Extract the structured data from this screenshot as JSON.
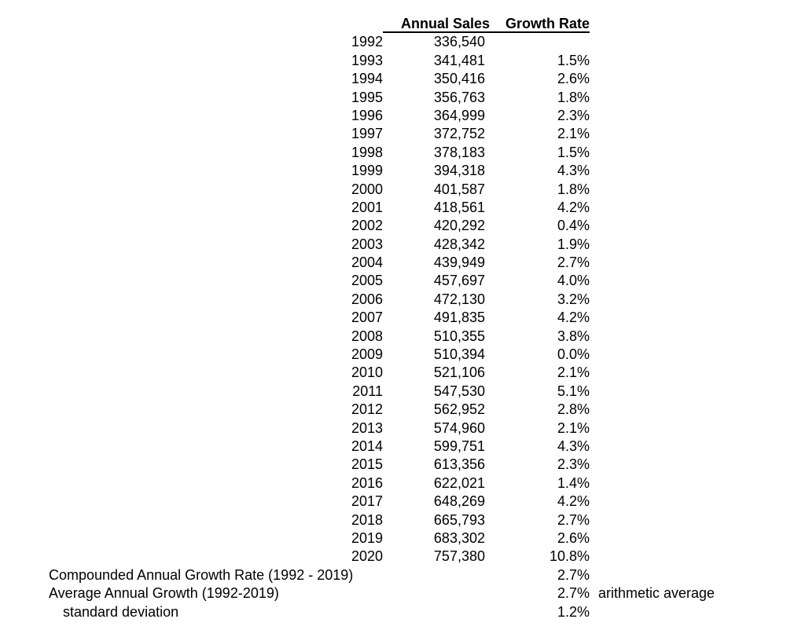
{
  "chart_data": {
    "type": "table",
    "title": "",
    "headers": {
      "label": "",
      "sales": "Annual Sales",
      "growth": "Growth Rate"
    },
    "rows": [
      {
        "year": "1992",
        "sales": "336,540",
        "growth": ""
      },
      {
        "year": "1993",
        "sales": "341,481",
        "growth": "1.5%"
      },
      {
        "year": "1994",
        "sales": "350,416",
        "growth": "2.6%"
      },
      {
        "year": "1995",
        "sales": "356,763",
        "growth": "1.8%"
      },
      {
        "year": "1996",
        "sales": "364,999",
        "growth": "2.3%"
      },
      {
        "year": "1997",
        "sales": "372,752",
        "growth": "2.1%"
      },
      {
        "year": "1998",
        "sales": "378,183",
        "growth": "1.5%"
      },
      {
        "year": "1999",
        "sales": "394,318",
        "growth": "4.3%"
      },
      {
        "year": "2000",
        "sales": "401,587",
        "growth": "1.8%"
      },
      {
        "year": "2001",
        "sales": "418,561",
        "growth": "4.2%"
      },
      {
        "year": "2002",
        "sales": "420,292",
        "growth": "0.4%"
      },
      {
        "year": "2003",
        "sales": "428,342",
        "growth": "1.9%"
      },
      {
        "year": "2004",
        "sales": "439,949",
        "growth": "2.7%"
      },
      {
        "year": "2005",
        "sales": "457,697",
        "growth": "4.0%"
      },
      {
        "year": "2006",
        "sales": "472,130",
        "growth": "3.2%"
      },
      {
        "year": "2007",
        "sales": "491,835",
        "growth": "4.2%"
      },
      {
        "year": "2008",
        "sales": "510,355",
        "growth": "3.8%"
      },
      {
        "year": "2009",
        "sales": "510,394",
        "growth": "0.0%"
      },
      {
        "year": "2010",
        "sales": "521,106",
        "growth": "2.1%"
      },
      {
        "year": "2011",
        "sales": "547,530",
        "growth": "5.1%"
      },
      {
        "year": "2012",
        "sales": "562,952",
        "growth": "2.8%"
      },
      {
        "year": "2013",
        "sales": "574,960",
        "growth": "2.1%"
      },
      {
        "year": "2014",
        "sales": "599,751",
        "growth": "4.3%"
      },
      {
        "year": "2015",
        "sales": "613,356",
        "growth": "2.3%"
      },
      {
        "year": "2016",
        "sales": "622,021",
        "growth": "1.4%"
      },
      {
        "year": "2017",
        "sales": "648,269",
        "growth": "4.2%"
      },
      {
        "year": "2018",
        "sales": "665,793",
        "growth": "2.7%"
      },
      {
        "year": "2019",
        "sales": "683,302",
        "growth": "2.6%"
      },
      {
        "year": "2020",
        "sales": "757,380",
        "growth": "10.8%"
      }
    ],
    "summary": [
      {
        "label": "Compounded Annual Growth Rate (1992 - 2019)",
        "growth": "2.7%",
        "note": "",
        "indent": false
      },
      {
        "label": "Average Annual Growth (1992-2019)",
        "growth": "2.7%",
        "note": "arithmetic average",
        "indent": false
      },
      {
        "label": "standard deviation",
        "growth": "1.2%",
        "note": "",
        "indent": true
      }
    ],
    "layout": {
      "grid": false,
      "text_color": "#000000",
      "background": "#ffffff",
      "header_underline": true
    }
  }
}
